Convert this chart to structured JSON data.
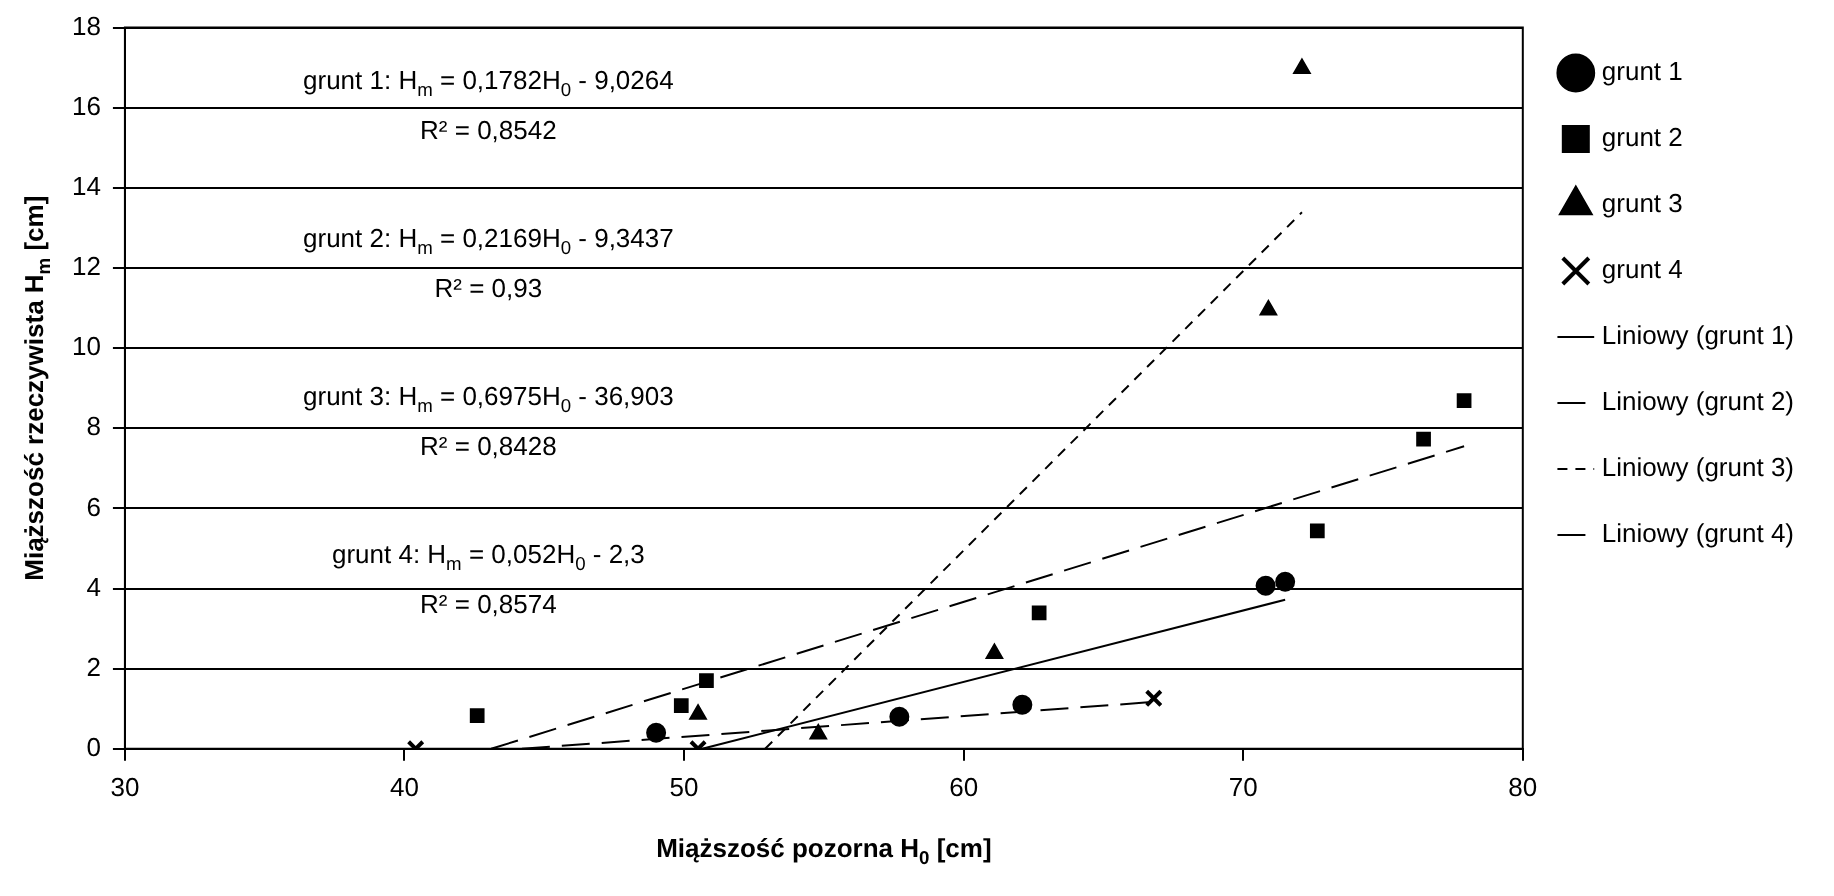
{
  "chart_data": {
    "type": "scatter",
    "xlabel": "Miąższość pozorna H$_{0}$ [cm]",
    "ylabel": "Miąższość rzeczywista H$_{m}$ [cm]",
    "xlim": [
      30,
      80
    ],
    "xticks": [
      30,
      40,
      50,
      60,
      70,
      80
    ],
    "ylim": [
      0,
      18
    ],
    "yticks": [
      0,
      2,
      4,
      6,
      8,
      10,
      12,
      14,
      16,
      18
    ],
    "grid": "y",
    "legend": "right",
    "series": [
      {
        "name": "grunt 1",
        "color": "#000000",
        "marker": "circle",
        "x": [
          49.0,
          57.7,
          62.1,
          70.8,
          71.5
        ],
        "values": [
          0.4,
          0.8,
          1.1,
          4.07,
          4.17
        ]
      },
      {
        "name": "grunt 2",
        "color": "#000000",
        "marker": "square",
        "x": [
          42.6,
          49.9,
          50.8,
          62.7,
          72.65,
          76.45,
          77.9
        ],
        "values": [
          0.83,
          1.08,
          1.7,
          3.39,
          5.44,
          7.73,
          8.69
        ]
      },
      {
        "name": "grunt 3",
        "color": "#000000",
        "marker": "triangle",
        "x": [
          50.5,
          54.8,
          61.1,
          70.9,
          72.1
        ],
        "values": [
          0.86,
          0.37,
          2.38,
          10.95,
          16.98
        ]
      },
      {
        "name": "grunt 4",
        "color": "#000000",
        "marker": "cross",
        "x": [
          40.4,
          50.5,
          66.8
        ],
        "values": [
          0,
          0,
          1.26
        ]
      },
      {
        "name": "Liniowy (grunt 1)",
        "type": "line",
        "color": "#000000",
        "marker": "none",
        "line_style": "solid",
        "x": [
          50.65,
          71.5
        ],
        "values": [
          0,
          3.72
        ]
      },
      {
        "name": "Liniowy (grunt 2)",
        "type": "line",
        "color": "#000000",
        "marker": "none",
        "line_style": "dashed",
        "x": [
          43.1,
          77.9
        ],
        "values": [
          0,
          7.55
        ]
      },
      {
        "name": "Liniowy (grunt 3)",
        "type": "line",
        "color": "#000000",
        "marker": "none",
        "line_style": "dotted",
        "x": [
          52.9,
          72.1
        ],
        "values": [
          0,
          13.39
        ]
      },
      {
        "name": "Liniowy (grunt 4)",
        "type": "line",
        "color": "#000000",
        "marker": "none",
        "line_style": "dashed",
        "x": [
          44.2,
          66.8
        ],
        "values": [
          0,
          1.17
        ]
      }
    ],
    "annotations": [
      "grunt 1: H$_{m}$ = 0,1782H$_{0}$ - 9,0264",
      "R² = 0,8542",
      "grunt 2: H$_{m}$ = 0,2169H$_{0}$ - 9,3437",
      "R² = 0,93",
      "grunt 3: H$_{m}$ = 0,6975H$_{0}$ - 36,903",
      "R² = 0,8428",
      "grunt 4: H$_{m}$ = 0,052H$_{0}$ - 2,3",
      "R² = 0,8574"
    ]
  }
}
